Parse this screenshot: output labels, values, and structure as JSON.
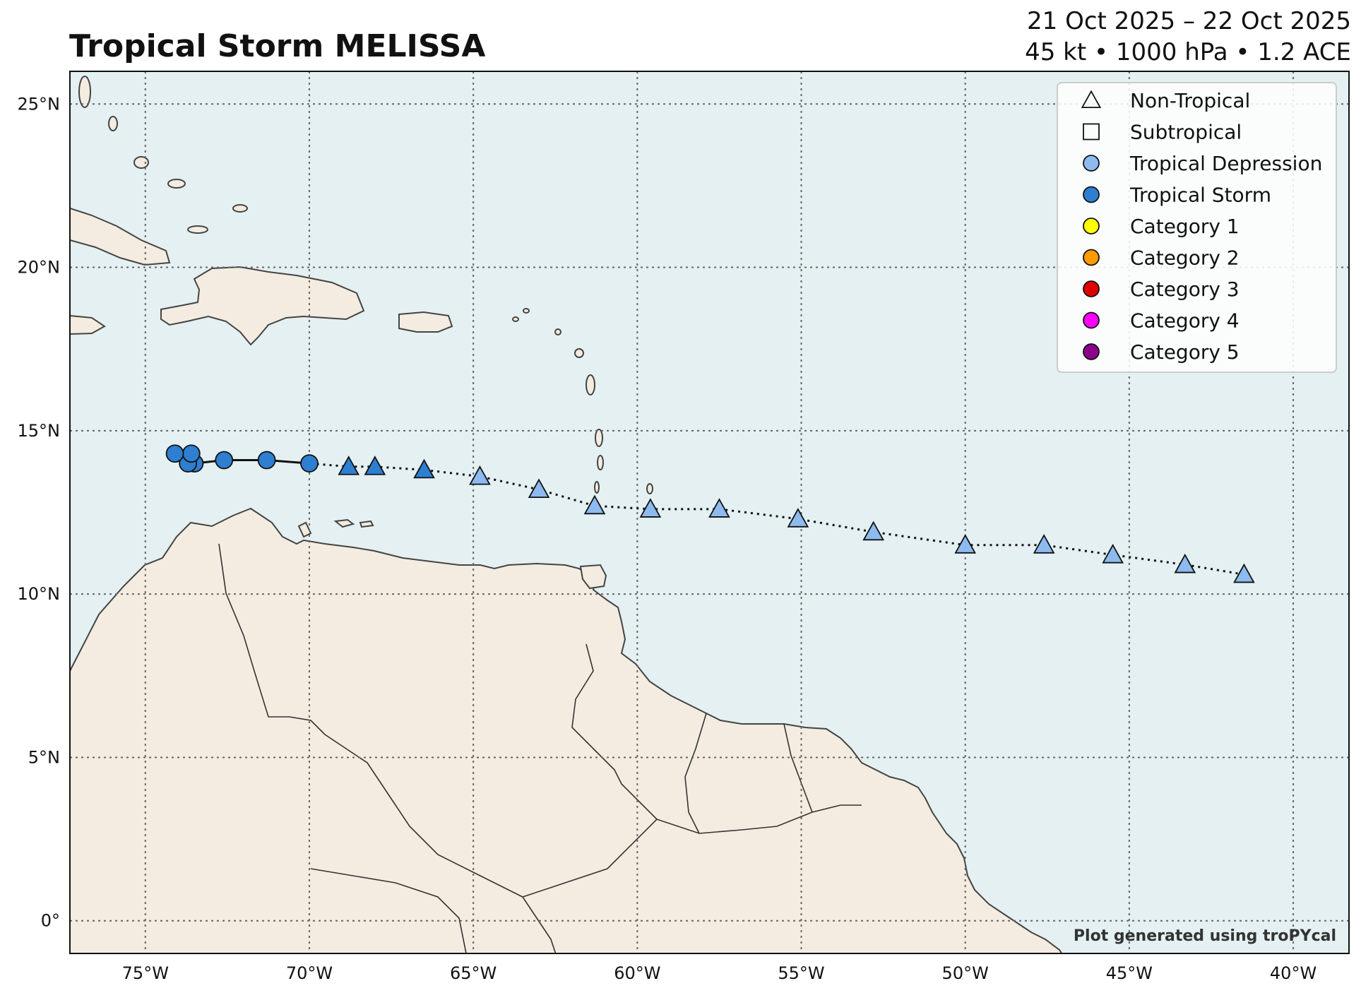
{
  "header": {
    "title": "Tropical Storm MELISSA",
    "dates": "21 Oct 2025 – 22 Oct 2025",
    "stats": "45 kt • 1000 hPa • 1.2 ACE"
  },
  "credit": "Plot generated using troPYcal",
  "colors": {
    "ocean": "#e4f0f2",
    "land": "#f4ece0",
    "coast": "#444444",
    "grid": "#666666",
    "tropical_depression": "#8dbbf0",
    "tropical_storm": "#2e7fd1",
    "category_1": "#ffff00",
    "category_2": "#ff9a00",
    "category_3": "#e00000",
    "category_4": "#ff00ff",
    "category_5": "#8b0088"
  },
  "map": {
    "lon_range": [
      -77.3,
      -38.3
    ],
    "lat_range": [
      -1.0,
      26.0
    ],
    "lon_ticks": [
      {
        "value": -75,
        "label": "75°W"
      },
      {
        "value": -70,
        "label": "70°W"
      },
      {
        "value": -65,
        "label": "65°W"
      },
      {
        "value": -60,
        "label": "60°W"
      },
      {
        "value": -55,
        "label": "55°W"
      },
      {
        "value": -50,
        "label": "50°W"
      },
      {
        "value": -45,
        "label": "45°W"
      },
      {
        "value": -40,
        "label": "40°W"
      }
    ],
    "lat_ticks": [
      {
        "value": 0,
        "label": "0°"
      },
      {
        "value": 5,
        "label": "5°N"
      },
      {
        "value": 10,
        "label": "10°N"
      },
      {
        "value": 15,
        "label": "15°N"
      },
      {
        "value": 20,
        "label": "20°N"
      },
      {
        "value": 25,
        "label": "25°N"
      }
    ],
    "grid": true
  },
  "legend": {
    "placement": "top-right",
    "items": [
      {
        "label": "Non-Tropical",
        "marker": "triangle",
        "color": "none"
      },
      {
        "label": "Subtropical",
        "marker": "square",
        "color": "none"
      },
      {
        "label": "Tropical Depression",
        "marker": "circle",
        "color": "#8dbbf0"
      },
      {
        "label": "Tropical Storm",
        "marker": "circle",
        "color": "#2e7fd1"
      },
      {
        "label": "Category 1",
        "marker": "circle",
        "color": "#ffff00"
      },
      {
        "label": "Category 2",
        "marker": "circle",
        "color": "#ff9a00"
      },
      {
        "label": "Category 3",
        "marker": "circle",
        "color": "#e00000"
      },
      {
        "label": "Category 4",
        "marker": "circle",
        "color": "#ff00ff"
      },
      {
        "label": "Category 5",
        "marker": "circle",
        "color": "#8b0088"
      }
    ]
  },
  "track": {
    "points": [
      {
        "lon": -41.5,
        "lat": 10.6,
        "marker": "triangle",
        "category": "tropical_depression"
      },
      {
        "lon": -43.3,
        "lat": 10.9,
        "marker": "triangle",
        "category": "tropical_depression"
      },
      {
        "lon": -45.5,
        "lat": 11.2,
        "marker": "triangle",
        "category": "tropical_depression"
      },
      {
        "lon": -47.6,
        "lat": 11.5,
        "marker": "triangle",
        "category": "tropical_depression"
      },
      {
        "lon": -50.0,
        "lat": 11.5,
        "marker": "triangle",
        "category": "tropical_depression"
      },
      {
        "lon": -52.8,
        "lat": 11.9,
        "marker": "triangle",
        "category": "tropical_depression"
      },
      {
        "lon": -55.1,
        "lat": 12.3,
        "marker": "triangle",
        "category": "tropical_depression"
      },
      {
        "lon": -57.5,
        "lat": 12.6,
        "marker": "triangle",
        "category": "tropical_depression"
      },
      {
        "lon": -59.6,
        "lat": 12.6,
        "marker": "triangle",
        "category": "tropical_depression"
      },
      {
        "lon": -61.3,
        "lat": 12.7,
        "marker": "triangle",
        "category": "tropical_depression"
      },
      {
        "lon": -63.0,
        "lat": 13.2,
        "marker": "triangle",
        "category": "tropical_depression"
      },
      {
        "lon": -64.8,
        "lat": 13.6,
        "marker": "triangle",
        "category": "tropical_depression"
      },
      {
        "lon": -66.5,
        "lat": 13.8,
        "marker": "triangle",
        "category": "tropical_storm"
      },
      {
        "lon": -68.0,
        "lat": 13.9,
        "marker": "triangle",
        "category": "tropical_storm"
      },
      {
        "lon": -68.8,
        "lat": 13.9,
        "marker": "triangle",
        "category": "tropical_storm"
      },
      {
        "lon": -70.0,
        "lat": 14.0,
        "marker": "circle",
        "category": "tropical_storm"
      },
      {
        "lon": -71.3,
        "lat": 14.1,
        "marker": "circle",
        "category": "tropical_storm"
      },
      {
        "lon": -72.6,
        "lat": 14.1,
        "marker": "circle",
        "category": "tropical_storm"
      },
      {
        "lon": -73.5,
        "lat": 14.0,
        "marker": "circle",
        "category": "tropical_storm"
      },
      {
        "lon": -73.7,
        "lat": 14.0,
        "marker": "circle",
        "category": "tropical_storm"
      },
      {
        "lon": -73.6,
        "lat": 14.3,
        "marker": "circle",
        "category": "tropical_storm"
      },
      {
        "lon": -74.1,
        "lat": 14.3,
        "marker": "circle",
        "category": "tropical_storm"
      }
    ],
    "dotted_until_index": 15
  }
}
